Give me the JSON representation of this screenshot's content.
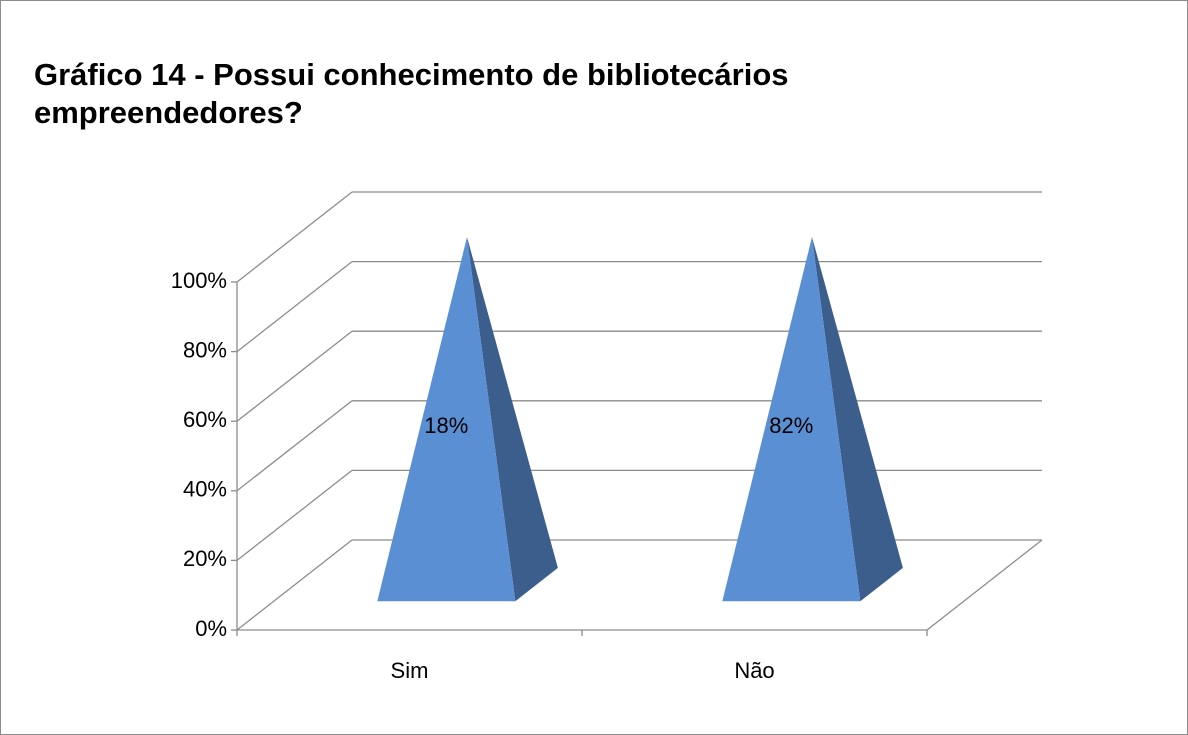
{
  "chart_data": {
    "type": "pyramid",
    "stacking": "percent",
    "title": "Gráfico 14 - Possui conhecimento de bibliotecários empreendedores?",
    "categories": [
      "Sim",
      "Não"
    ],
    "values": [
      18,
      82
    ],
    "value_labels": [
      "18%",
      "82%"
    ],
    "color": "#5b8fd3",
    "ylim": [
      0,
      100
    ],
    "yticks": [
      {
        "value": 0,
        "label": "0%"
      },
      {
        "value": 20,
        "label": "20%"
      },
      {
        "value": 40,
        "label": "40%"
      },
      {
        "value": 60,
        "label": "60%"
      },
      {
        "value": 80,
        "label": "80%"
      },
      {
        "value": 100,
        "label": "100%"
      }
    ],
    "grid": true
  }
}
